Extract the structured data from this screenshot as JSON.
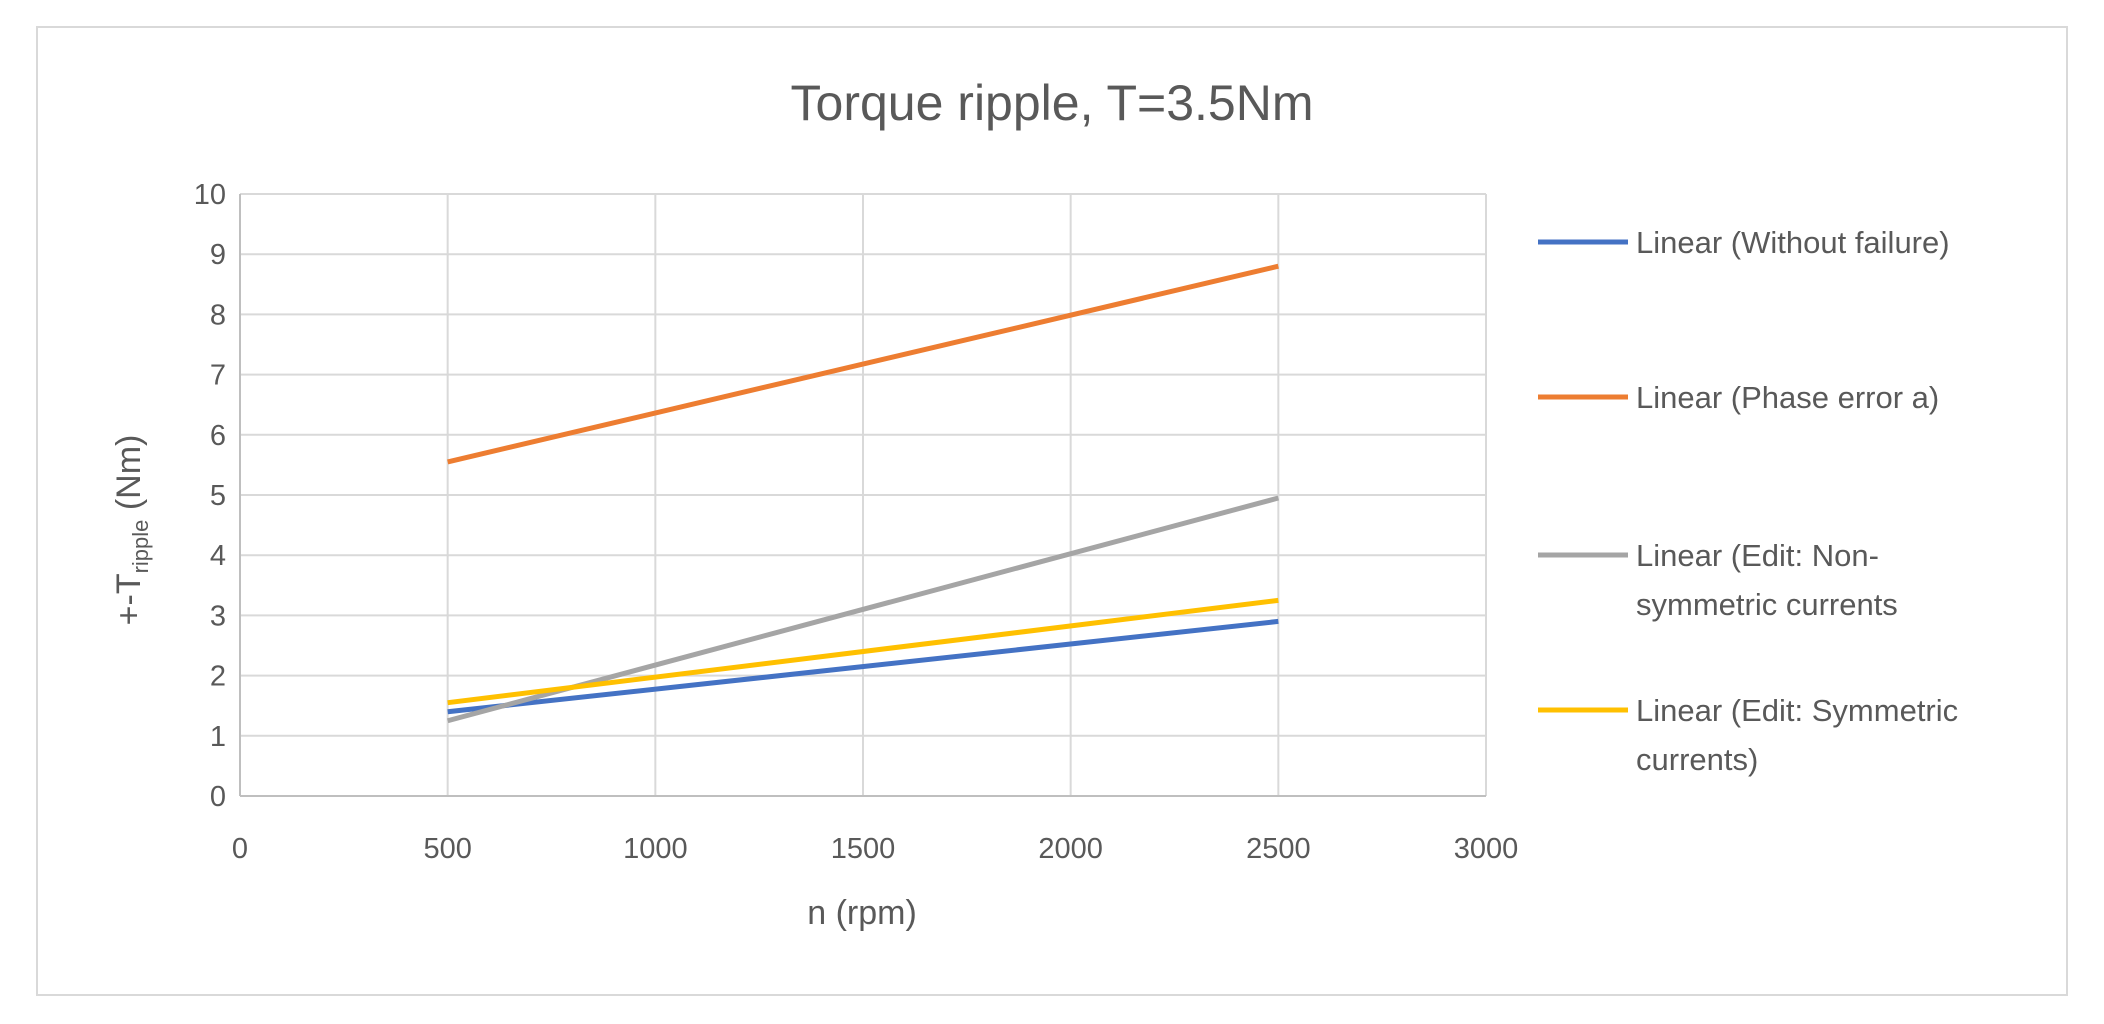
{
  "chart_data": {
    "type": "line",
    "title": "Torque ripple, T=3.5Nm",
    "xlabel": "n (rpm)",
    "ylabel": {
      "prefix": "+-T",
      "subscript": "ripple",
      "suffix": " (Nm)"
    },
    "xlim": [
      0,
      3000
    ],
    "ylim": [
      0,
      10
    ],
    "xticks": [
      0,
      500,
      1000,
      1500,
      2000,
      2500,
      3000
    ],
    "yticks": [
      0,
      1,
      2,
      3,
      4,
      5,
      6,
      7,
      8,
      9,
      10
    ],
    "grid": true,
    "legend_position": "right",
    "series": [
      {
        "name": "Linear (Without failure)",
        "legend_lines": [
          "Linear (Without failure)"
        ],
        "color": "#4472C4",
        "x": [
          500,
          2500
        ],
        "y": [
          1.4,
          2.9
        ]
      },
      {
        "name": "Linear (Phase error a)",
        "legend_lines": [
          "Linear (Phase error a)"
        ],
        "color": "#ED7D31",
        "x": [
          500,
          2500
        ],
        "y": [
          5.55,
          8.8
        ]
      },
      {
        "name": "Linear (Edit: Non-symmetric currents",
        "legend_lines": [
          "Linear (Edit: Non-",
          "symmetric currents"
        ],
        "color": "#A5A5A5",
        "x": [
          500,
          2500
        ],
        "y": [
          1.25,
          4.95
        ]
      },
      {
        "name": "Linear (Edit: Symmetric currents)",
        "legend_lines": [
          "Linear (Edit: Symmetric",
          "currents)"
        ],
        "color": "#FFC000",
        "x": [
          500,
          2500
        ],
        "y": [
          1.55,
          3.25
        ]
      }
    ]
  }
}
